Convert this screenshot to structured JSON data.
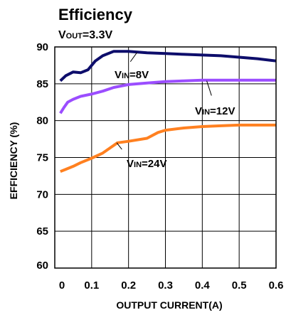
{
  "chart_data": {
    "type": "line",
    "title": "Efficiency",
    "subtitle": {
      "prefix": "V",
      "sub": "OUT",
      "suffix": "=3.3V"
    },
    "xlabel": "OUTPUT CURRENT(A)",
    "ylabel": "EFFICIENCY (%)",
    "xlim": [
      0,
      0.6
    ],
    "ylim": [
      60,
      90
    ],
    "x_ticks": [
      0,
      0.1,
      0.2,
      0.3,
      0.4,
      0.5,
      0.6
    ],
    "x_tick_labels": [
      "0",
      "0.1",
      "0.2",
      "0.3",
      "0.4",
      "0.5",
      "0.6"
    ],
    "y_ticks": [
      60,
      65,
      70,
      75,
      80,
      85,
      90
    ],
    "y_tick_labels": [
      "60",
      "65",
      "70",
      "75",
      "80",
      "85",
      "90"
    ],
    "grid": true,
    "series": [
      {
        "label": {
          "prefix": "V",
          "sub": "IN",
          "suffix": "=8V"
        },
        "color": "#0d0d6b",
        "x": [
          0.015,
          0.03,
          0.05,
          0.07,
          0.09,
          0.11,
          0.13,
          0.16,
          0.2,
          0.25,
          0.3,
          0.35,
          0.4,
          0.45,
          0.5,
          0.55,
          0.6
        ],
        "y": [
          85.4,
          86.1,
          86.6,
          86.5,
          86.9,
          88.1,
          88.8,
          89.4,
          89.4,
          89.2,
          89.1,
          89.0,
          88.9,
          88.8,
          88.6,
          88.4,
          88.1
        ]
      },
      {
        "label": {
          "prefix": "V",
          "sub": "IN",
          "suffix": "=12V"
        },
        "color": "#9b4dff",
        "x": [
          0.015,
          0.025,
          0.035,
          0.05,
          0.07,
          0.1,
          0.13,
          0.16,
          0.2,
          0.25,
          0.3,
          0.35,
          0.4,
          0.45,
          0.5,
          0.55,
          0.6
        ],
        "y": [
          81.0,
          81.8,
          82.5,
          82.9,
          83.3,
          83.6,
          84.0,
          84.5,
          84.9,
          85.1,
          85.3,
          85.4,
          85.5,
          85.5,
          85.5,
          85.5,
          85.5
        ]
      },
      {
        "label": {
          "prefix": "V",
          "sub": "IN",
          "suffix": "=24V"
        },
        "color": "#ff8020",
        "x": [
          0.015,
          0.03,
          0.05,
          0.07,
          0.1,
          0.13,
          0.15,
          0.17,
          0.2,
          0.25,
          0.28,
          0.3,
          0.35,
          0.4,
          0.45,
          0.5,
          0.55,
          0.6
        ],
        "y": [
          73.1,
          73.4,
          73.8,
          74.3,
          74.9,
          75.6,
          76.3,
          77.0,
          77.2,
          77.6,
          78.4,
          78.7,
          79.0,
          79.2,
          79.3,
          79.4,
          79.4,
          79.4
        ]
      }
    ]
  }
}
